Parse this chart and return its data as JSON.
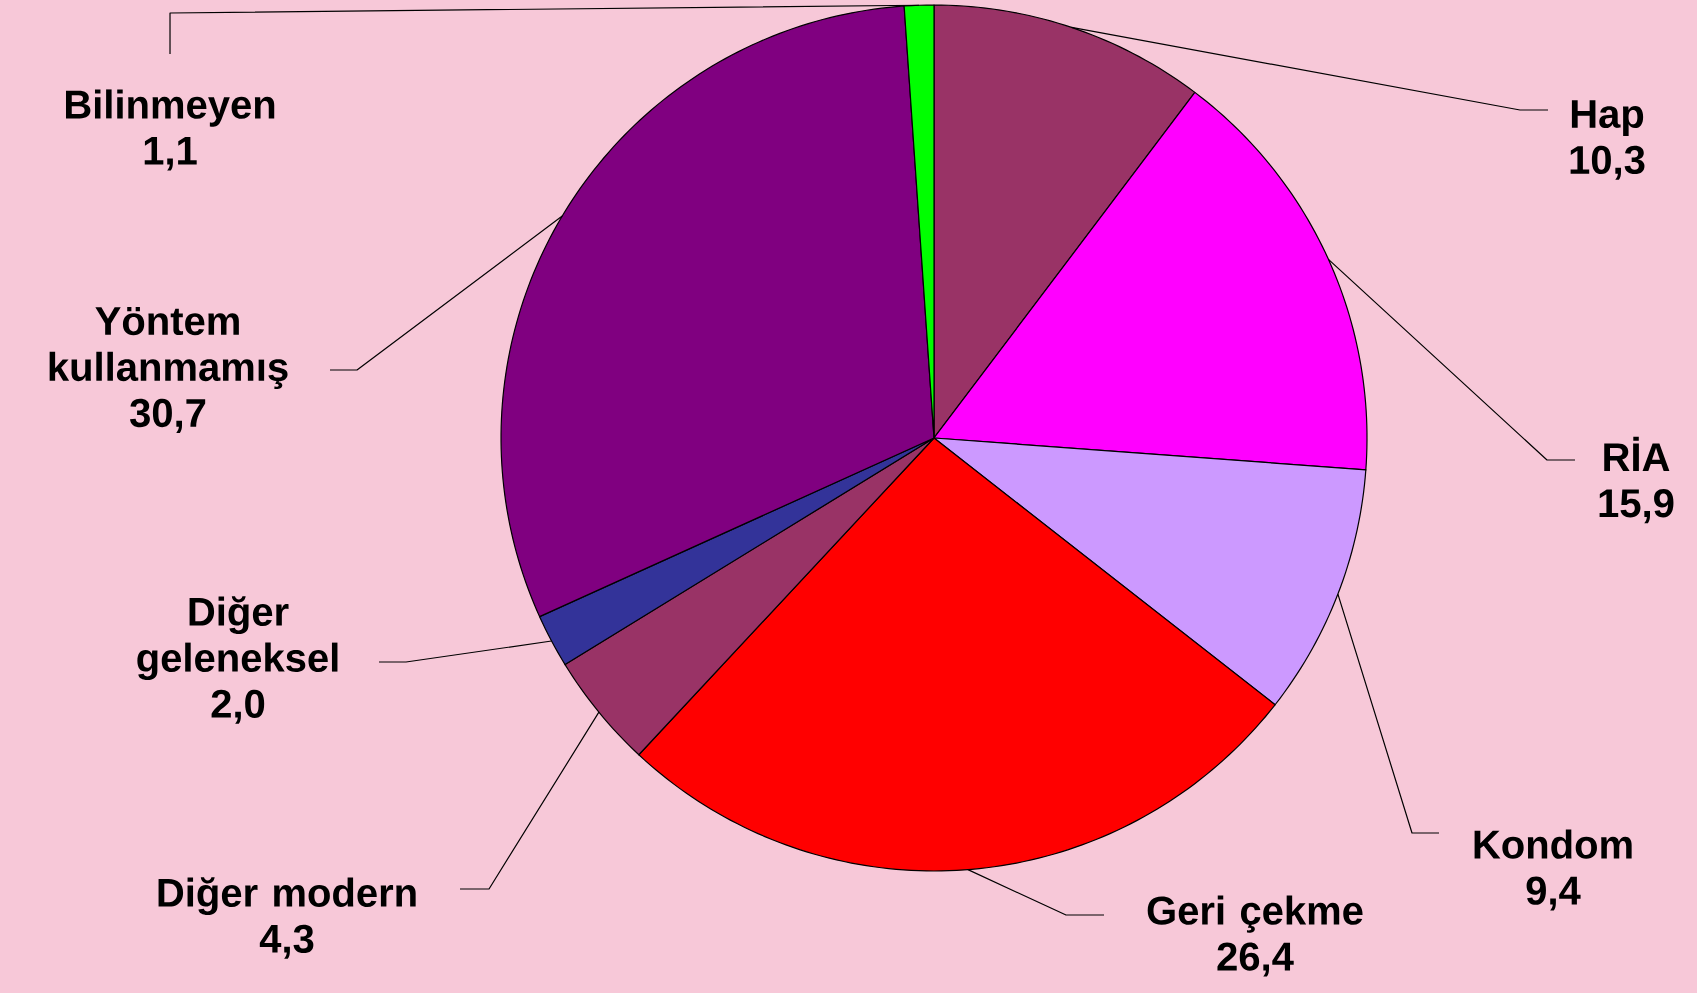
{
  "chart_data": {
    "type": "pie",
    "categories": [
      "Hap",
      "RİA",
      "Kondom",
      "Geri çekme",
      "Diğer modern",
      "Diğer geleneksel",
      "Yöntem kullanmamış",
      "Bilinmeyen"
    ],
    "values": [
      10.3,
      15.9,
      9.4,
      26.4,
      4.3,
      2.0,
      30.7,
      1.1
    ],
    "value_labels": [
      "10,3",
      "15,9",
      "9,4",
      "26,4",
      "4,3",
      "2,0",
      "30,7",
      "1,1"
    ],
    "colors": [
      "#993366",
      "#ff00ff",
      "#cc99ff",
      "#ff0000",
      "#993366",
      "#333399",
      "#800080",
      "#00ff00"
    ]
  }
}
